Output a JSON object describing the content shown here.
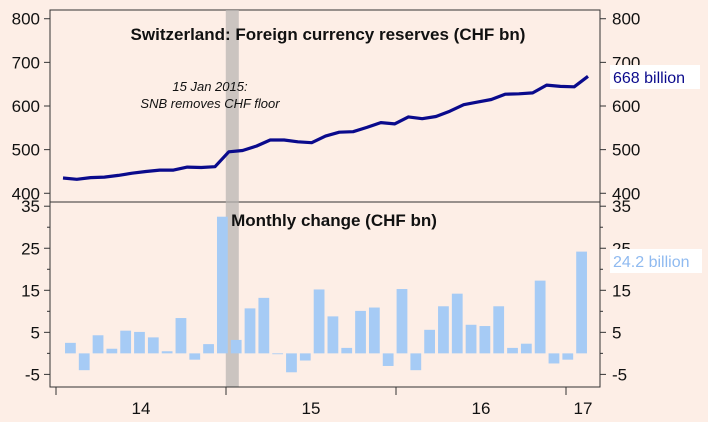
{
  "colors": {
    "background": "#fdeee6",
    "line": "#0a0a8c",
    "bar": "#a6cbf5",
    "highlight": "#b9b6b3",
    "axis": "#333333"
  },
  "chart_data": [
    {
      "type": "line",
      "title": "Switzerland: Foreign currency reserves (CHF bn)",
      "ylim": [
        380,
        820
      ],
      "yticks": [
        400,
        500,
        600,
        700,
        800
      ],
      "annotation_line1": "15 Jan 2015:",
      "annotation_line2": "SNB removes CHF floor",
      "end_label": "668 billion",
      "series": [
        {
          "values": [
            435,
            432,
            436,
            437,
            441,
            446,
            450,
            453,
            453,
            460,
            459,
            461,
            495,
            498,
            508,
            522,
            522,
            518,
            516,
            531,
            540,
            541,
            551,
            562,
            559,
            575,
            571,
            576,
            588,
            603,
            609,
            615,
            627,
            628,
            630,
            648,
            645,
            644,
            668
          ]
        }
      ]
    },
    {
      "type": "bar",
      "title": "Monthly change (CHF bn)",
      "ylim": [
        -8,
        36
      ],
      "yticks": [
        35,
        25,
        15,
        5,
        -5
      ],
      "ytick_labels": [
        "35",
        "25",
        "15",
        "5",
        "-5"
      ],
      "end_label": "24.2 billion",
      "x_tick_labels": [
        "14",
        "15",
        "16",
        "17"
      ],
      "values": [
        2.5,
        -4,
        4.3,
        1.1,
        5.4,
        5.1,
        3.8,
        0.5,
        8.4,
        -1.5,
        2.2,
        32.5,
        3.2,
        10.7,
        13.2,
        -0.2,
        -4.5,
        -1.7,
        15.2,
        8.8,
        1.3,
        10.1,
        10.9,
        -3,
        15.3,
        -4,
        5.6,
        11.2,
        14.2,
        6.8,
        6.5,
        11.2,
        1.3,
        2.3,
        17.3,
        -2.4,
        -1.5,
        24.2
      ]
    }
  ]
}
